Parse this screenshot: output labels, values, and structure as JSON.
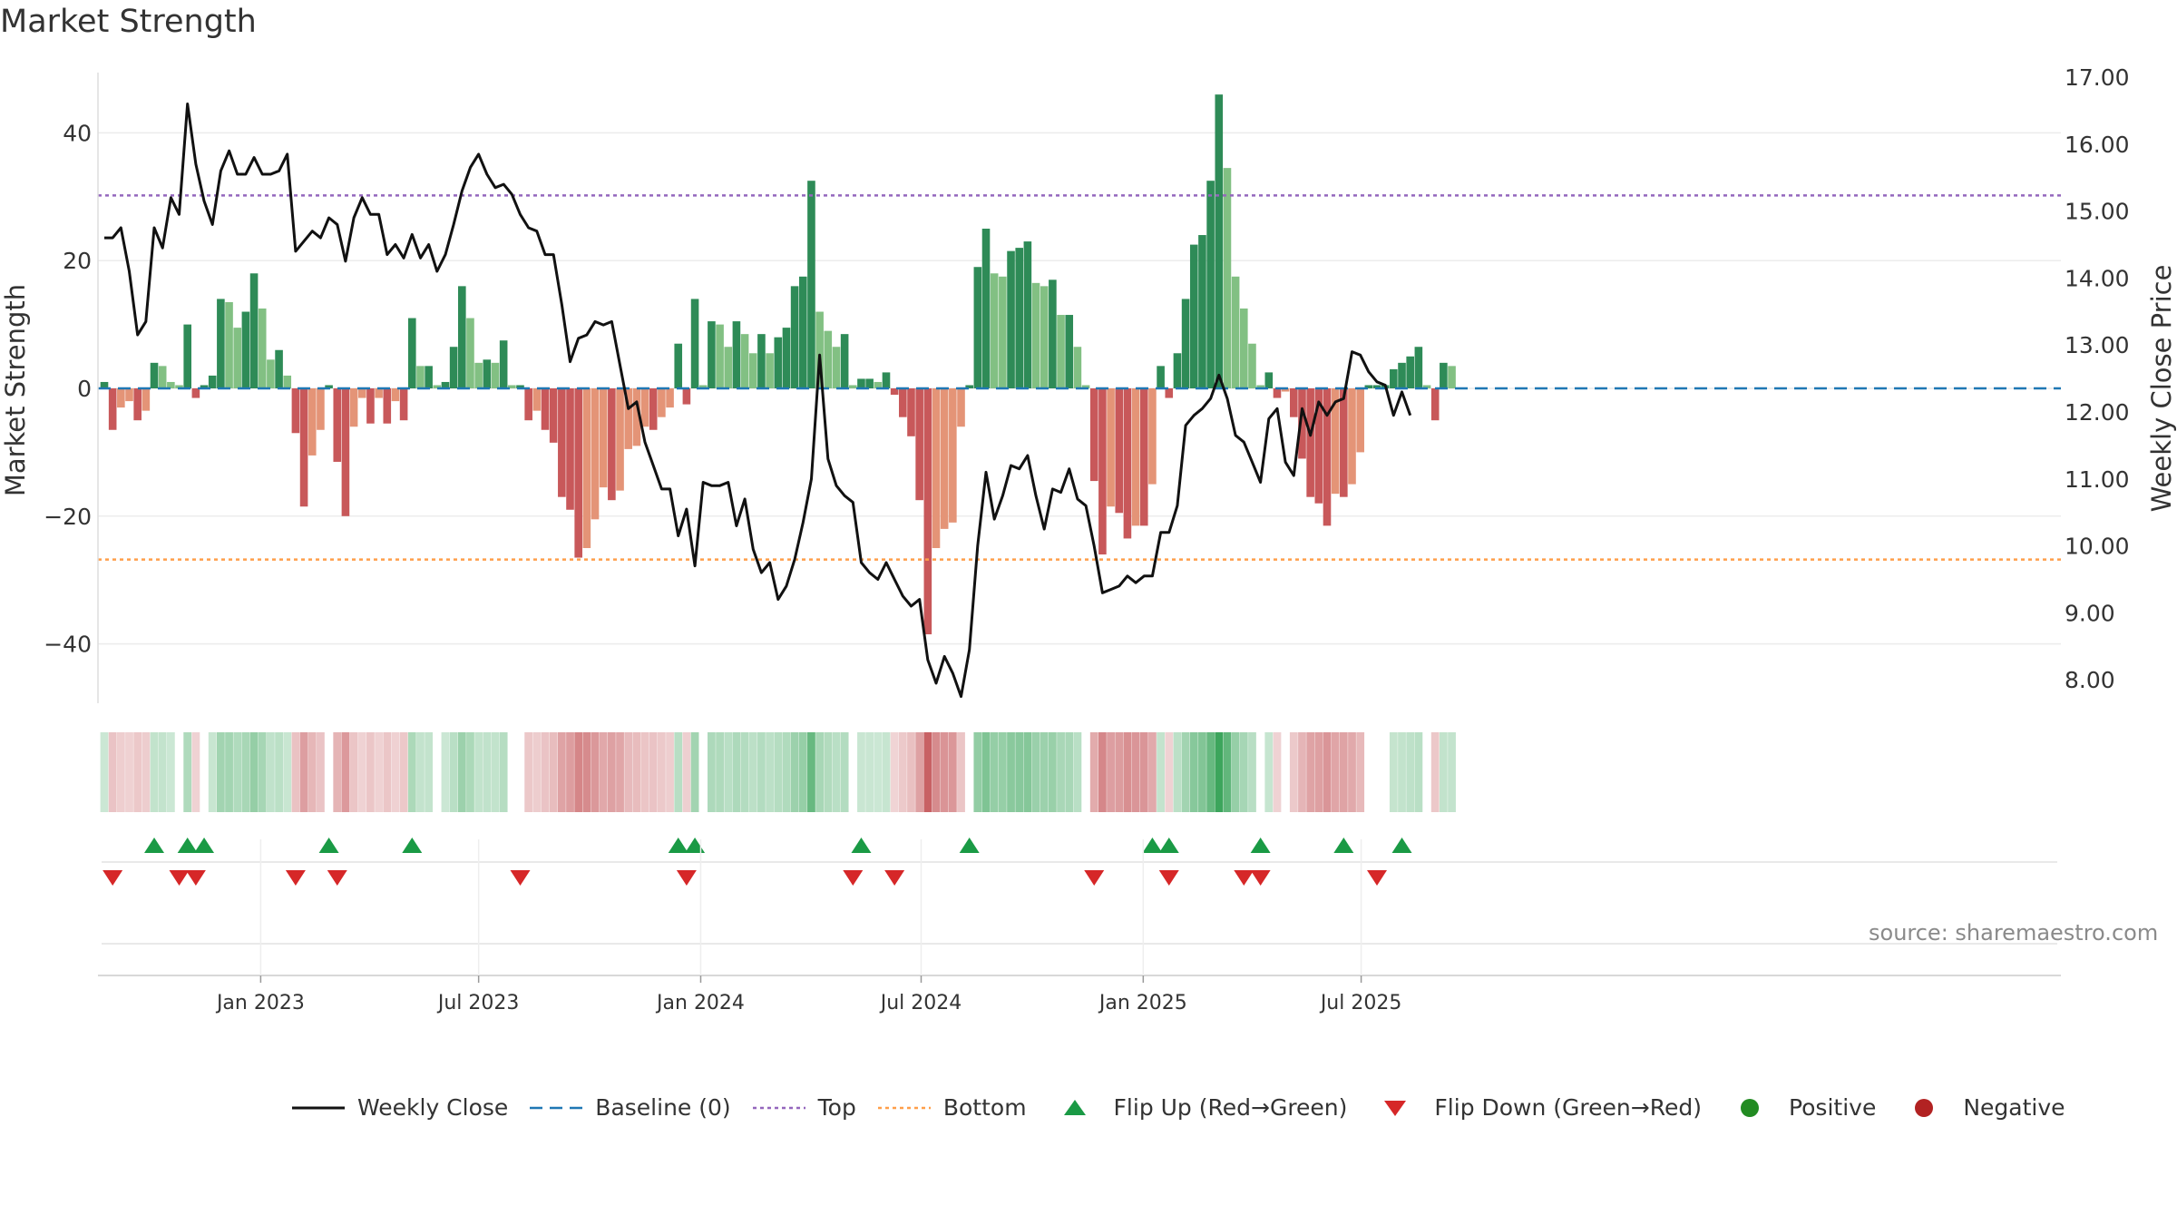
{
  "chart_data": {
    "type": "bar",
    "title": "Market Strength",
    "ylabel_left": "Market Strength",
    "ylabel_right": "Weekly Close Price",
    "source": "source: sharemaestro.com",
    "y_left_range": [
      -49.5,
      50
    ],
    "y_left_ticks": [
      40,
      20,
      0,
      -20,
      -40
    ],
    "y_left_tick_labels": [
      "40",
      "20",
      "0",
      "−20",
      "−40"
    ],
    "y_right_range": [
      7.5,
      17.0
    ],
    "y_right_ticks": [
      17,
      16,
      15,
      14,
      13,
      12,
      11,
      10,
      9,
      8
    ],
    "y_right_tick_labels": [
      "17.00",
      "16.00",
      "15.00",
      "14.00",
      "13.00",
      "12.00",
      "11.00",
      "10.00",
      "9.00",
      "8.00"
    ],
    "x_tick_labels": [
      "Jan 2023",
      "Jul 2023",
      "Jan 2024",
      "Jul 2024",
      "Jan 2025",
      "Jul 2025"
    ],
    "x_tick_week_index": [
      18.8,
      45.0,
      71.7,
      98.2,
      124.9,
      151.1
    ],
    "top_level": 30.2,
    "bottom_level": -26.8,
    "strength": [
      1,
      -6.5,
      -3,
      -2,
      -5,
      -3.5,
      4,
      3.5,
      1,
      0.5,
      10,
      -1.5,
      0.5,
      2,
      14,
      13.5,
      9.5,
      12,
      18,
      12.5,
      4.5,
      6,
      2,
      -7,
      -18.5,
      -10.5,
      -6.5,
      0.5,
      -11.5,
      -20,
      -6,
      -1.5,
      -5.5,
      -1.5,
      -5.5,
      -2,
      -5,
      11,
      3.5,
      3.5,
      0.5,
      1,
      6.5,
      16,
      11,
      4,
      4.5,
      4,
      7.5,
      0.5,
      0.5,
      -5,
      -3.5,
      -6.5,
      -8.5,
      -17,
      -19,
      -26.5,
      -25,
      -20.5,
      -15.5,
      -17.5,
      -16,
      -9.5,
      -9,
      -6,
      -6.5,
      -4.5,
      -3,
      7,
      -2.5,
      14,
      0.5,
      10.5,
      10,
      6.5,
      10.5,
      8.5,
      5.5,
      8.5,
      5.5,
      8,
      9.5,
      16,
      17.5,
      32.5,
      12,
      9,
      6.5,
      8.5,
      0.5,
      1.5,
      1.5,
      1,
      2.5,
      -1,
      -4.5,
      -7.5,
      -17.5,
      -38.5,
      -25,
      -22,
      -21,
      -6,
      0.5,
      19,
      25,
      18,
      17.5,
      21.5,
      22,
      23,
      16.5,
      16,
      17,
      11.5,
      11.5,
      6.5,
      0.5,
      -14.5,
      -26,
      -18.5,
      -19.5,
      -23.5,
      -21.5,
      -21.5,
      -15,
      3.5,
      -1.5,
      5.5,
      14,
      22.5,
      24,
      32.5,
      46,
      34.5,
      17.5,
      12.5,
      7,
      0.5,
      2.5,
      -1.5,
      -0.5,
      -4.5,
      -11,
      -17,
      -18,
      -21.5,
      -16.5,
      -17,
      -15,
      -10,
      0.5,
      0.5,
      0.5,
      3,
      4,
      5,
      6.5,
      0.5,
      -5,
      4,
      3.5
    ],
    "close": [
      14.6,
      14.6,
      14.75,
      14.1,
      13.15,
      13.35,
      14.75,
      14.45,
      15.2,
      14.95,
      16.6,
      15.7,
      15.15,
      14.8,
      15.6,
      15.9,
      15.55,
      15.55,
      15.8,
      15.55,
      15.55,
      15.6,
      15.85,
      14.4,
      14.55,
      14.7,
      14.6,
      14.9,
      14.8,
      14.25,
      14.9,
      15.2,
      14.95,
      14.95,
      14.35,
      14.5,
      14.3,
      14.65,
      14.3,
      14.5,
      14.1,
      14.35,
      14.8,
      15.3,
      15.65,
      15.85,
      15.55,
      15.35,
      15.4,
      15.25,
      14.95,
      14.75,
      14.7,
      14.35,
      14.35,
      13.6,
      12.75,
      13.1,
      13.15,
      13.35,
      13.3,
      13.35,
      12.7,
      12.05,
      12.15,
      11.55,
      11.2,
      10.85,
      10.85,
      10.15,
      10.55,
      9.7,
      10.95,
      10.9,
      10.9,
      10.95,
      10.3,
      10.7,
      9.95,
      9.6,
      9.75,
      9.2,
      9.4,
      9.8,
      10.35,
      11.0,
      12.85,
      11.3,
      10.9,
      10.75,
      10.65,
      9.75,
      9.6,
      9.5,
      9.75,
      9.5,
      9.25,
      9.1,
      9.2,
      8.3,
      7.95,
      8.35,
      8.1,
      7.75,
      8.45,
      10.0,
      11.1,
      10.4,
      10.75,
      11.2,
      11.15,
      11.35,
      10.75,
      10.25,
      10.85,
      10.8,
      11.15,
      10.7,
      10.6,
      10.0,
      9.3,
      9.35,
      9.4,
      9.55,
      9.45,
      9.55,
      9.55,
      10.2,
      10.2,
      10.6,
      11.8,
      11.95,
      12.05,
      12.2,
      12.55,
      12.2,
      11.65,
      11.55,
      11.25,
      10.95,
      11.9,
      12.05,
      11.25,
      11.05,
      12.05,
      11.65,
      12.15,
      11.95,
      12.15,
      12.2,
      12.9,
      12.85,
      12.6,
      12.45,
      12.4,
      11.95,
      12.3,
      11.95
    ],
    "flip_up_weeks": [
      6,
      10,
      12,
      27,
      37,
      69,
      71,
      91,
      104,
      126,
      128,
      139,
      149,
      156
    ],
    "flip_down_weeks": [
      1,
      9,
      11,
      23,
      28,
      50,
      70,
      90,
      95,
      119,
      128,
      137,
      139,
      153
    ],
    "colors": {
      "dark_green": "#2e8b57",
      "light_green": "#82c083",
      "dark_red": "#c8585a",
      "light_red": "#e49477",
      "close_line": "#111111",
      "baseline": "#1f77b4",
      "top_line": "#9467bd",
      "bottom_line": "#ff9f4a",
      "flip_up": "#1a9a45",
      "flip_down": "#d62728",
      "positive": "#228b22",
      "negative": "#b22222"
    }
  },
  "legend": {
    "weekly_close": "Weekly Close",
    "baseline": "Baseline (0)",
    "top": "Top",
    "bottom": "Bottom",
    "flip_up": "Flip Up (Red→Green)",
    "flip_down": "Flip Down (Green→Red)",
    "positive": "Positive",
    "negative": "Negative"
  }
}
